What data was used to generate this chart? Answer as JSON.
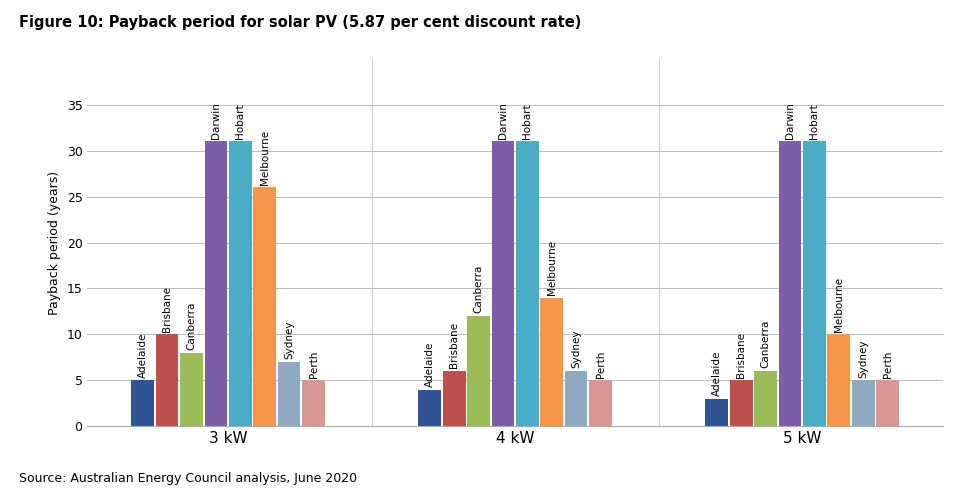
{
  "title": "Figure 10: Payback period for solar PV (5.87 per cent discount rate)",
  "ylabel": "Payback period (years)",
  "source": "Source: Australian Energy Council analysis, June 2020",
  "groups": [
    "3 kW",
    "4 kW",
    "5 kW"
  ],
  "cities": [
    "Adelaide",
    "Brisbane",
    "Canberra",
    "Darwin",
    "Hobart",
    "Melbourne",
    "Sydney",
    "Perth"
  ],
  "values": {
    "3 kW": [
      5,
      10,
      8,
      31,
      31,
      26,
      7,
      5
    ],
    "4 kW": [
      4,
      6,
      12,
      31,
      31,
      14,
      6,
      5
    ],
    "5 kW": [
      3,
      5,
      6,
      31,
      31,
      10,
      5,
      5
    ]
  },
  "bar_colors": [
    "#2E5496",
    "#C0504D",
    "#9BBB59",
    "#7B5EA7",
    "#4BACC6",
    "#F79646",
    "#8EA9C1",
    "#D99694"
  ],
  "ylim": [
    0,
    40
  ],
  "yticks": [
    0,
    5,
    10,
    15,
    20,
    25,
    30,
    35
  ],
  "figsize": [
    9.72,
    4.9
  ],
  "dpi": 100,
  "title_fontsize": 10.5,
  "label_fontsize": 7.5,
  "axis_fontsize": 9,
  "source_fontsize": 9
}
